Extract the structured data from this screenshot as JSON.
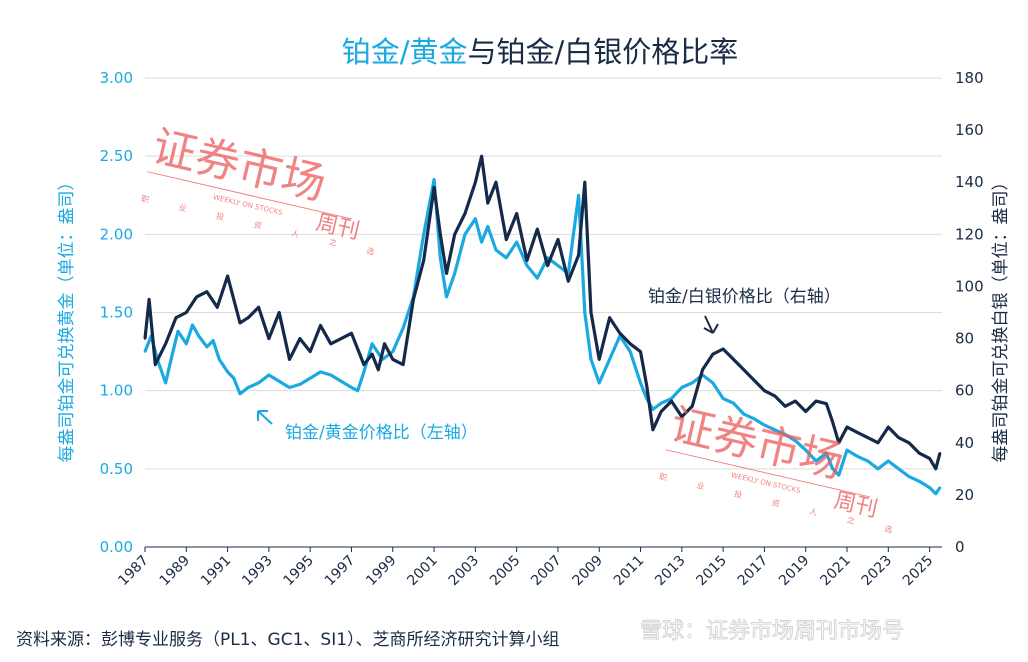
{
  "colors": {
    "gold_series": "#1aa9e1",
    "silver_series": "#15294a",
    "text_dark": "#1a2b45",
    "grid": "#dcdcdc",
    "watermark": "#ec5a5a"
  },
  "chart_data": {
    "type": "line",
    "title": {
      "part1": "铂金/黄金",
      "part2": "与铂金/白银价格比率"
    },
    "left_axis": {
      "label": "每盎司铂金可兑换黄金（单位：盎司）",
      "ticks": [
        "0.00",
        "0.50",
        "1.00",
        "1.50",
        "2.00",
        "2.50",
        "3.00"
      ],
      "ylim": [
        0,
        3
      ]
    },
    "right_axis": {
      "label": "每盎司铂金可兑换白银（单位：盎司）",
      "ticks": [
        "0",
        "20",
        "40",
        "60",
        "80",
        "100",
        "120",
        "140",
        "160",
        "180"
      ],
      "ylim": [
        0,
        180
      ]
    },
    "x_axis": {
      "ticks": [
        "1987",
        "1989",
        "1991",
        "1993",
        "1995",
        "1997",
        "1999",
        "2001",
        "2003",
        "2005",
        "2007",
        "2009",
        "2011",
        "2013",
        "2015",
        "2017",
        "2019",
        "2021",
        "2023",
        "2025"
      ],
      "xlim": [
        1987,
        2025.6
      ]
    },
    "grid": "horizontal",
    "series": [
      {
        "name": "铂金/黄金价格比（左轴）",
        "axis": "left",
        "x": [
          1987.0,
          1987.3,
          1987.6,
          1988.0,
          1988.3,
          1988.6,
          1989.0,
          1989.3,
          1989.6,
          1990.0,
          1990.3,
          1990.6,
          1991.0,
          1991.3,
          1991.6,
          1992.0,
          1992.5,
          1993.0,
          1993.5,
          1994.0,
          1994.5,
          1995.0,
          1995.5,
          1996.0,
          1996.5,
          1997.0,
          1997.3,
          1997.6,
          1998.0,
          1998.5,
          1999.0,
          1999.5,
          2000.0,
          2000.5,
          2001.0,
          2001.3,
          2001.6,
          2002.0,
          2002.5,
          2003.0,
          2003.3,
          2003.6,
          2004.0,
          2004.5,
          2005.0,
          2005.5,
          2006.0,
          2006.5,
          2007.0,
          2007.5,
          2008.0,
          2008.3,
          2008.6,
          2009.0,
          2009.5,
          2010.0,
          2010.5,
          2011.0,
          2011.3,
          2011.6,
          2012.0,
          2012.5,
          2013.0,
          2013.5,
          2014.0,
          2014.5,
          2015.0,
          2015.5,
          2016.0,
          2016.5,
          2017.0,
          2017.5,
          2018.0,
          2018.5,
          2019.0,
          2019.5,
          2020.0,
          2020.3,
          2020.6,
          2021.0,
          2021.5,
          2022.0,
          2022.5,
          2023.0,
          2023.5,
          2024.0,
          2024.5,
          2025.0,
          2025.3,
          2025.5
        ],
        "values": [
          1.25,
          1.35,
          1.2,
          1.05,
          1.22,
          1.38,
          1.3,
          1.42,
          1.35,
          1.28,
          1.32,
          1.2,
          1.12,
          1.08,
          0.98,
          1.02,
          1.05,
          1.1,
          1.06,
          1.02,
          1.04,
          1.08,
          1.12,
          1.1,
          1.06,
          1.02,
          1.0,
          1.12,
          1.3,
          1.2,
          1.25,
          1.4,
          1.6,
          2.0,
          2.35,
          1.85,
          1.6,
          1.75,
          2.0,
          2.1,
          1.95,
          2.05,
          1.9,
          1.85,
          1.95,
          1.8,
          1.72,
          1.85,
          1.8,
          1.75,
          2.25,
          1.5,
          1.2,
          1.05,
          1.2,
          1.35,
          1.25,
          1.05,
          0.95,
          0.88,
          0.92,
          0.95,
          1.02,
          1.05,
          1.1,
          1.05,
          0.95,
          0.92,
          0.85,
          0.82,
          0.78,
          0.75,
          0.72,
          0.68,
          0.62,
          0.55,
          0.6,
          0.5,
          0.46,
          0.62,
          0.58,
          0.55,
          0.5,
          0.55,
          0.5,
          0.45,
          0.42,
          0.38,
          0.34,
          0.38
        ]
      },
      {
        "name": "铂金/白银价格比（右轴）",
        "axis": "right",
        "x": [
          1987.0,
          1987.2,
          1987.5,
          1988.0,
          1988.5,
          1989.0,
          1989.5,
          1990.0,
          1990.5,
          1991.0,
          1991.3,
          1991.6,
          1992.0,
          1992.5,
          1993.0,
          1993.5,
          1994.0,
          1994.5,
          1995.0,
          1995.5,
          1996.0,
          1996.5,
          1997.0,
          1997.3,
          1997.6,
          1998.0,
          1998.3,
          1998.6,
          1999.0,
          1999.5,
          2000.0,
          2000.5,
          2001.0,
          2001.3,
          2001.6,
          2002.0,
          2002.5,
          2003.0,
          2003.3,
          2003.6,
          2004.0,
          2004.5,
          2005.0,
          2005.5,
          2006.0,
          2006.5,
          2007.0,
          2007.5,
          2008.0,
          2008.3,
          2008.6,
          2009.0,
          2009.5,
          2010.0,
          2010.5,
          2011.0,
          2011.3,
          2011.6,
          2012.0,
          2012.5,
          2013.0,
          2013.5,
          2014.0,
          2014.5,
          2015.0,
          2015.5,
          2016.0,
          2016.5,
          2017.0,
          2017.5,
          2018.0,
          2018.5,
          2019.0,
          2019.5,
          2020.0,
          2020.3,
          2020.6,
          2021.0,
          2021.5,
          2022.0,
          2022.5,
          2023.0,
          2023.5,
          2024.0,
          2024.5,
          2025.0,
          2025.3,
          2025.5
        ],
        "values": [
          80,
          95,
          70,
          78,
          88,
          90,
          96,
          98,
          92,
          104,
          95,
          86,
          88,
          92,
          80,
          90,
          72,
          80,
          75,
          85,
          78,
          80,
          82,
          76,
          70,
          74,
          68,
          78,
          72,
          70,
          95,
          110,
          138,
          120,
          105,
          120,
          128,
          140,
          150,
          132,
          140,
          118,
          128,
          110,
          122,
          108,
          118,
          102,
          112,
          140,
          90,
          72,
          88,
          82,
          78,
          75,
          62,
          45,
          52,
          56,
          50,
          54,
          68,
          74,
          76,
          72,
          68,
          64,
          60,
          58,
          54,
          56,
          52,
          56,
          55,
          48,
          40,
          46,
          44,
          42,
          40,
          46,
          42,
          40,
          36,
          34,
          30,
          36
        ]
      }
    ],
    "annotations": {
      "gold_label": "铂金/黄金价格比（左轴）",
      "silver_label": "铂金/白银价格比（右轴）"
    }
  },
  "source_note": "资料来源：彭博专业服务（PL1、GC1、SI1）、芝商所经济研究计算小组",
  "footer_watermark": "雪球：证券市场周刊市场号",
  "stamp": {
    "main": "证券市场",
    "sub": "周刊",
    "line_en": "WEEKLY ON STOCKS",
    "line_cn": "职 业 投 资 人 之 选"
  }
}
